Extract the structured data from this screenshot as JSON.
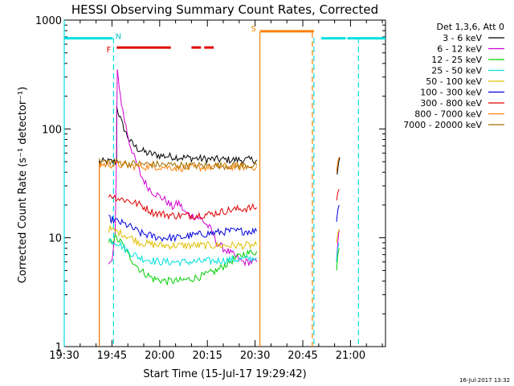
{
  "chart_data": {
    "type": "line",
    "title": "HESSI Observing Summary Count Rates, Corrected",
    "xlabel": "Start Time (15-Jul-17 19:29:42)",
    "ylabel": "Corrected Count Rate (s⁻¹ detector⁻¹)",
    "x_unit": "minutes from 19:30",
    "xlim": [
      0,
      101
    ],
    "ylim": [
      1,
      1000
    ],
    "y_scale": "log",
    "x_ticks": [
      {
        "t": 0,
        "label": "19:30"
      },
      {
        "t": 15,
        "label": "19:45"
      },
      {
        "t": 30,
        "label": "20:00"
      },
      {
        "t": 45,
        "label": "20:15"
      },
      {
        "t": 60,
        "label": "20:30"
      },
      {
        "t": 75,
        "label": "20:45"
      },
      {
        "t": 90,
        "label": "21:00"
      }
    ],
    "y_ticks": [
      {
        "v": 1,
        "label": "1"
      },
      {
        "v": 10,
        "label": "10"
      },
      {
        "v": 100,
        "label": "100"
      },
      {
        "v": 1000,
        "label": "1000"
      }
    ],
    "legend": {
      "header": "Det 1,3,6, Att 0",
      "placement": "right"
    },
    "series": [
      {
        "name": "3 - 6 keV",
        "color": "#000000",
        "segments": [
          [
            [
              11,
              1
            ],
            [
              11,
              50
            ],
            [
              16.5,
              50
            ],
            [
              16.5,
              160
            ],
            [
              18,
              115
            ],
            [
              19.5,
              90
            ],
            [
              21,
              75
            ],
            [
              23,
              66
            ],
            [
              26,
              60
            ],
            [
              30,
              57
            ],
            [
              36,
              55
            ],
            [
              44,
              53
            ],
            [
              52,
              52
            ],
            [
              60.5,
              52
            ]
          ],
          [
            [
              85.8,
              38
            ],
            [
              86.2,
              48
            ],
            [
              86.6,
              55
            ]
          ]
        ]
      },
      {
        "name": "6 - 12 keV",
        "color": "#d000d0",
        "segments": [
          [
            [
              14,
              5.7
            ],
            [
              15,
              6
            ],
            [
              16,
              11
            ],
            [
              16.3,
              35
            ],
            [
              16.7,
              330
            ],
            [
              17.3,
              250
            ],
            [
              18,
              170
            ],
            [
              19,
              120
            ],
            [
              20.5,
              75
            ],
            [
              22,
              55
            ],
            [
              24,
              38
            ],
            [
              26,
              30
            ],
            [
              28,
              26
            ],
            [
              30,
              24
            ],
            [
              32,
              22
            ],
            [
              34,
              19
            ],
            [
              36,
              21
            ],
            [
              38,
              17
            ],
            [
              40,
              16
            ],
            [
              43,
              15
            ],
            [
              46,
              12
            ],
            [
              48,
              9
            ],
            [
              50,
              8
            ],
            [
              53,
              7
            ],
            [
              56,
              6
            ],
            [
              60.5,
              6
            ]
          ],
          [
            [
              85.6,
              6
            ],
            [
              86,
              9
            ],
            [
              86.4,
              12
            ]
          ]
        ]
      },
      {
        "name": "12 - 25 keV",
        "color": "#00d000",
        "segments": [
          [
            [
              14,
              9
            ],
            [
              16,
              10
            ],
            [
              18,
              9
            ],
            [
              20,
              7
            ],
            [
              24,
              5
            ],
            [
              28,
              4.2
            ],
            [
              32,
              4
            ],
            [
              36,
              4
            ],
            [
              40,
              4.2
            ],
            [
              44,
              4.5
            ],
            [
              48,
              5
            ],
            [
              52,
              6
            ],
            [
              56,
              7
            ],
            [
              60.5,
              7.5
            ]
          ],
          [
            [
              85.6,
              5
            ],
            [
              86,
              7
            ],
            [
              86.4,
              8
            ]
          ]
        ]
      },
      {
        "name": "25 - 50 keV",
        "color": "#00e0e0",
        "segments": [
          [
            [
              14,
              9.5
            ],
            [
              17,
              9
            ],
            [
              20,
              7.5
            ],
            [
              24,
              6.5
            ],
            [
              30,
              6
            ],
            [
              40,
              6
            ],
            [
              50,
              6.2
            ],
            [
              60.5,
              6.5
            ]
          ],
          [
            [
              85.6,
              6
            ],
            [
              86,
              8
            ],
            [
              86.4,
              9
            ]
          ]
        ]
      },
      {
        "name": "50 - 100 keV",
        "color": "#e0c000",
        "segments": [
          [
            [
              14,
              12
            ],
            [
              18,
              11
            ],
            [
              24,
              9
            ],
            [
              30,
              8.5
            ],
            [
              40,
              8.5
            ],
            [
              50,
              8.5
            ],
            [
              60.5,
              8.5
            ]
          ],
          [
            [
              85.6,
              9
            ],
            [
              86,
              11
            ],
            [
              86.4,
              12
            ]
          ]
        ]
      },
      {
        "name": "100 - 300 keV",
        "color": "#0000e0",
        "segments": [
          [
            [
              14,
              15
            ],
            [
              17,
              14
            ],
            [
              20,
              13
            ],
            [
              24,
              11
            ],
            [
              30,
              10
            ],
            [
              36,
              10
            ],
            [
              40,
              10.5
            ],
            [
              46,
              11
            ],
            [
              52,
              11.5
            ],
            [
              60.5,
              11.5
            ]
          ],
          [
            [
              85.6,
              14
            ],
            [
              86,
              18
            ],
            [
              86.4,
              20
            ]
          ]
        ]
      },
      {
        "name": "300 - 800 keV",
        "color": "#e00000",
        "segments": [
          [
            [
              14,
              25
            ],
            [
              17,
              23
            ],
            [
              20,
              22
            ],
            [
              24,
              20
            ],
            [
              28,
              17
            ],
            [
              34,
              16
            ],
            [
              40,
              16
            ],
            [
              46,
              16.5
            ],
            [
              52,
              18
            ],
            [
              60.5,
              19
            ]
          ],
          [
            [
              85.6,
              22
            ],
            [
              86,
              26
            ],
            [
              86.4,
              28
            ]
          ]
        ]
      },
      {
        "name": "800 - 7000 keV",
        "color": "#ff8000",
        "segments": [
          [
            [
              11,
              1
            ],
            [
              11,
              47
            ],
            [
              16,
              47
            ],
            [
              20,
              46
            ],
            [
              26,
              45
            ],
            [
              30,
              45
            ],
            [
              36,
              44
            ],
            [
              42,
              44
            ],
            [
              48,
              45
            ],
            [
              54,
              45
            ],
            [
              60.5,
              45
            ]
          ],
          [
            [
              85.6,
              40
            ],
            [
              86,
              50
            ],
            [
              86.4,
              55
            ]
          ]
        ]
      },
      {
        "name": "7000 - 20000 keV",
        "color": "#a07000",
        "segments": [
          [
            [
              11,
              50
            ],
            [
              16,
              50
            ],
            [
              20,
              48
            ],
            [
              30,
              47
            ],
            [
              40,
              46
            ],
            [
              50,
              46
            ],
            [
              60.5,
              46
            ]
          ]
        ]
      }
    ],
    "markers": {
      "cyan_bars": [
        [
          0,
          15.2
        ],
        [
          89,
          101
        ],
        [
          80.8,
          88.5
        ]
      ],
      "cyan_dashed": [
        15.5,
        78.5,
        92.5
      ],
      "cyan_solid": [
        0
      ],
      "orange_solid": [
        61.5
      ],
      "orange_dashed": [
        78
      ],
      "orange_bar": [
        61.5,
        78.5
      ],
      "red_bars": [
        [
          16.5,
          33.5
        ],
        [
          40,
          43
        ],
        [
          44,
          47
        ]
      ],
      "labels": [
        {
          "text": "N",
          "t": 17,
          "v": 720,
          "color": "#00c0c0"
        },
        {
          "text": "F",
          "t": 14,
          "v": 540,
          "color": "#e00000"
        },
        {
          "text": "S",
          "t": 59.5,
          "v": 840,
          "color": "#ff8000"
        }
      ],
      "colors": {
        "cyan": "#00e0e0",
        "orange": "#ff8000",
        "red": "#e00000"
      }
    }
  },
  "footer_timestamp": "16-Jul-2017 13:32"
}
